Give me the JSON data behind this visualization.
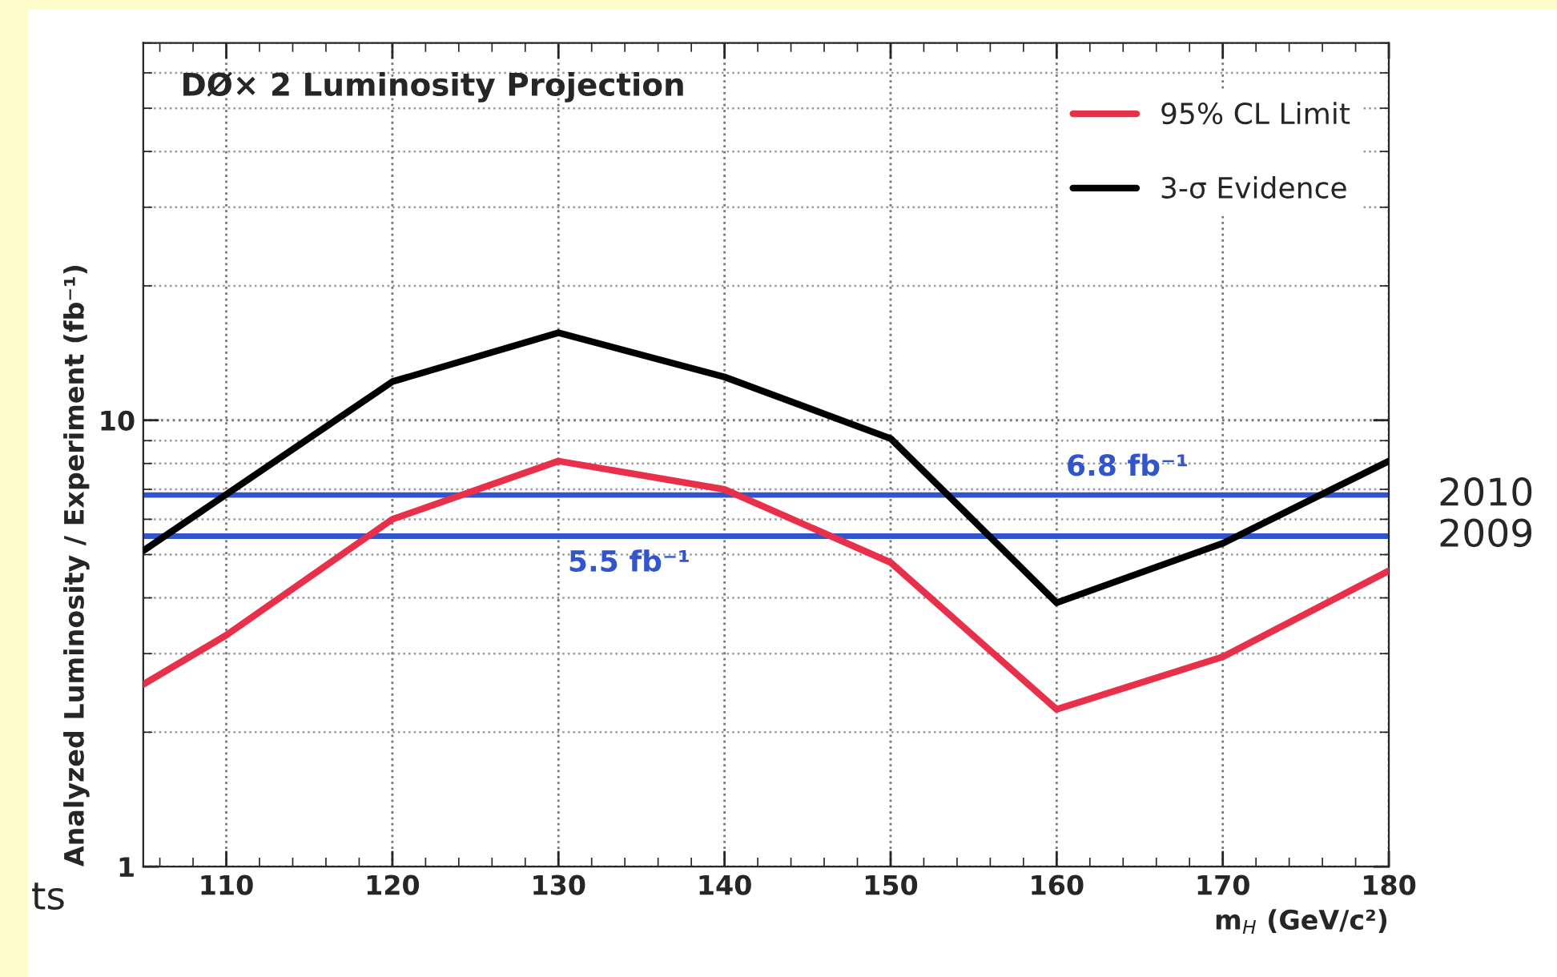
{
  "chart_data": {
    "type": "line",
    "title": "DØ× 2 Luminosity Projection",
    "xlabel": "m$_{H}$ (GeV/c²)",
    "ylabel": "Analyzed Luminosity / Experiment (fb⁻¹)",
    "x": [
      105,
      110,
      120,
      130,
      140,
      150,
      160,
      170,
      180
    ],
    "series": [
      {
        "name": "95% CL Limit",
        "color": "#e8304a",
        "values": [
          2.56,
          3.3,
          6.0,
          8.1,
          7.0,
          4.8,
          2.25,
          2.95,
          4.6
        ]
      },
      {
        "name": "3-σ Evidence",
        "color": "#000000",
        "values": [
          5.1,
          null,
          12.2,
          15.7,
          12.5,
          9.1,
          3.9,
          5.3,
          8.1
        ]
      }
    ],
    "xlim": [
      105,
      180
    ],
    "xticks": [
      110,
      120,
      130,
      140,
      150,
      160,
      170,
      180
    ],
    "ylim": [
      1,
      70
    ],
    "yticks": [
      1,
      10
    ],
    "log": true,
    "grid": true,
    "legend": "top right",
    "line_style": "solid",
    "marker": "none",
    "ref_lines": [
      {
        "axis": "y",
        "value": 6.8,
        "label": "6.8 fb⁻¹",
        "color": "#3355cc"
      },
      {
        "axis": "y",
        "value": 5.5,
        "label": "5.5 fb⁻¹",
        "color": "#3355cc"
      }
    ],
    "annotations": [
      {
        "text": "2010",
        "x": 180,
        "y": 6.8
      },
      {
        "text": "2009",
        "x": 180,
        "y": 5.5
      },
      "ts"
    ]
  }
}
